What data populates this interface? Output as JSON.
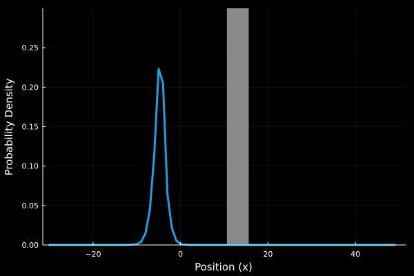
{
  "chart_data": {
    "type": "line",
    "title": "",
    "xlabel": "Position (x)",
    "ylabel": "Probability Density",
    "xlim": [
      -31.5,
      51.5
    ],
    "ylim": [
      0,
      0.3
    ],
    "x_ticks": [
      -20,
      0,
      20,
      40
    ],
    "x_tick_labels": [
      "−20",
      "0",
      "20",
      "40"
    ],
    "y_ticks": [
      0,
      0.05,
      0.1,
      0.15,
      0.2,
      0.25
    ],
    "y_tick_labels": [
      "0.00",
      "0.05",
      "0.10",
      "0.15",
      "0.20",
      "0.25"
    ],
    "grid": true,
    "legend": "none",
    "background_color": "#000000",
    "series": [
      {
        "color": "#1aa3e0",
        "x": [
          -30,
          -12,
          -10,
          -9,
          -8,
          -7,
          -6,
          -5,
          -4,
          -3,
          -2,
          -1,
          0,
          2,
          49
        ],
        "y": [
          0,
          0,
          0.001,
          0.004,
          0.015,
          0.045,
          0.115,
          0.223,
          0.205,
          0.065,
          0.022,
          0.006,
          0.001,
          0,
          0
        ]
      }
    ],
    "shaded_region": {
      "x_start": 10.6,
      "x_end": 15.6,
      "color": "#8a8a8a"
    }
  }
}
